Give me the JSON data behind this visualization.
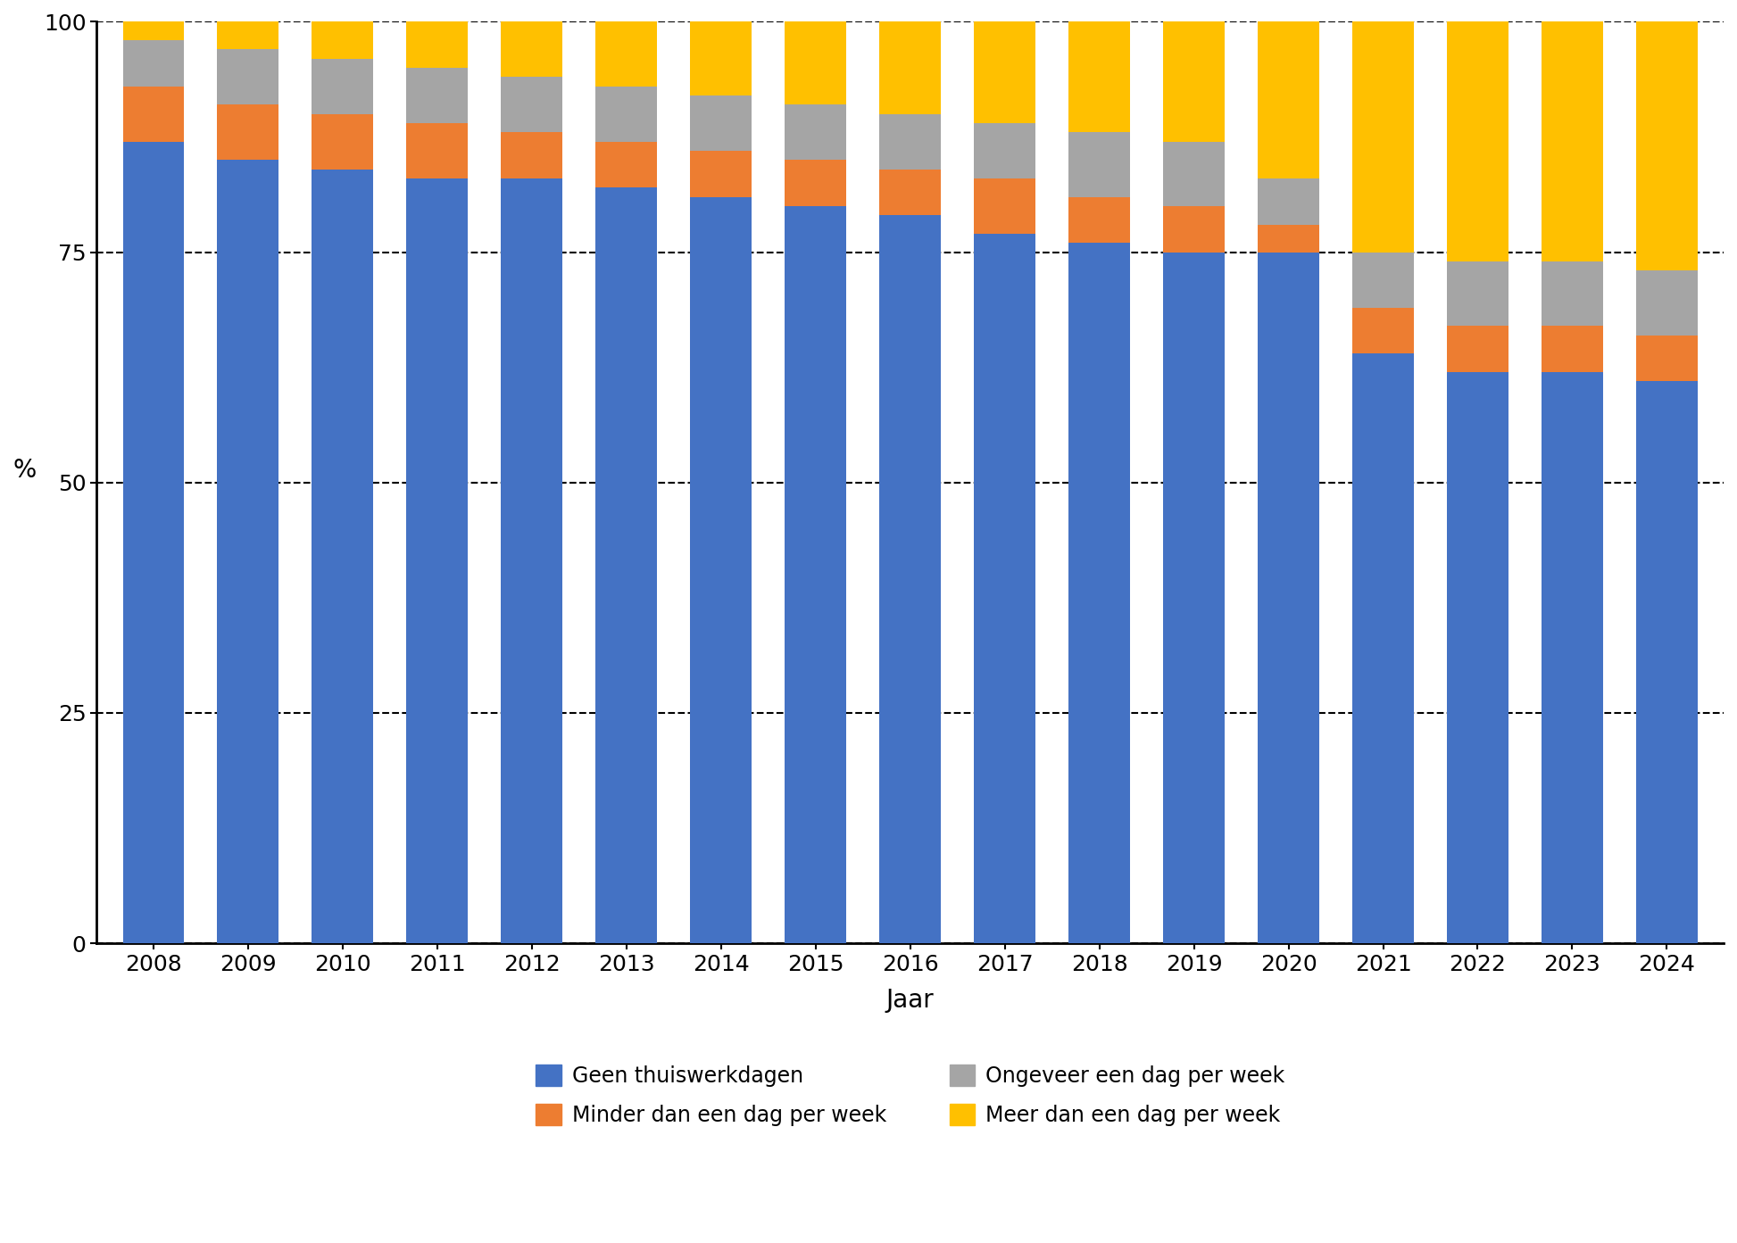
{
  "years": [
    2008,
    2009,
    2010,
    2011,
    2012,
    2013,
    2014,
    2015,
    2016,
    2017,
    2018,
    2019,
    2020,
    2021,
    2022,
    2023,
    2024
  ],
  "geen_thuiswerk": [
    87,
    85,
    84,
    83,
    83,
    82,
    81,
    80,
    79,
    77,
    76,
    75,
    75,
    64,
    62,
    62,
    61
  ],
  "minder_dan_dag": [
    6,
    6,
    6,
    6,
    5,
    5,
    5,
    5,
    5,
    6,
    5,
    5,
    3,
    5,
    5,
    5,
    5
  ],
  "ongeveer_dag": [
    5,
    6,
    6,
    6,
    6,
    6,
    6,
    6,
    6,
    6,
    7,
    7,
    5,
    6,
    7,
    7,
    7
  ],
  "meer_dan_dag": [
    2,
    3,
    4,
    5,
    6,
    7,
    8,
    9,
    10,
    11,
    12,
    13,
    17,
    25,
    26,
    26,
    27
  ],
  "colors": {
    "geen_thuiswerk": "#4472C4",
    "minder_dan_dag": "#ED7D31",
    "ongeveer_dag": "#A5A5A5",
    "meer_dan_dag": "#FFC000"
  },
  "ylabel": "%",
  "xlabel": "Jaar",
  "ylim": [
    0,
    100
  ],
  "yticks": [
    0,
    25,
    50,
    75,
    100
  ],
  "legend_labels": [
    "Geen thuiswerkdagen",
    "Minder dan een dag per week",
    "Ongeveer een dag per week",
    "Meer dan een dag per week"
  ],
  "bar_width": 0.65,
  "background_color": "#ffffff",
  "axis_fontsize": 20,
  "tick_fontsize": 18,
  "legend_fontsize": 17
}
